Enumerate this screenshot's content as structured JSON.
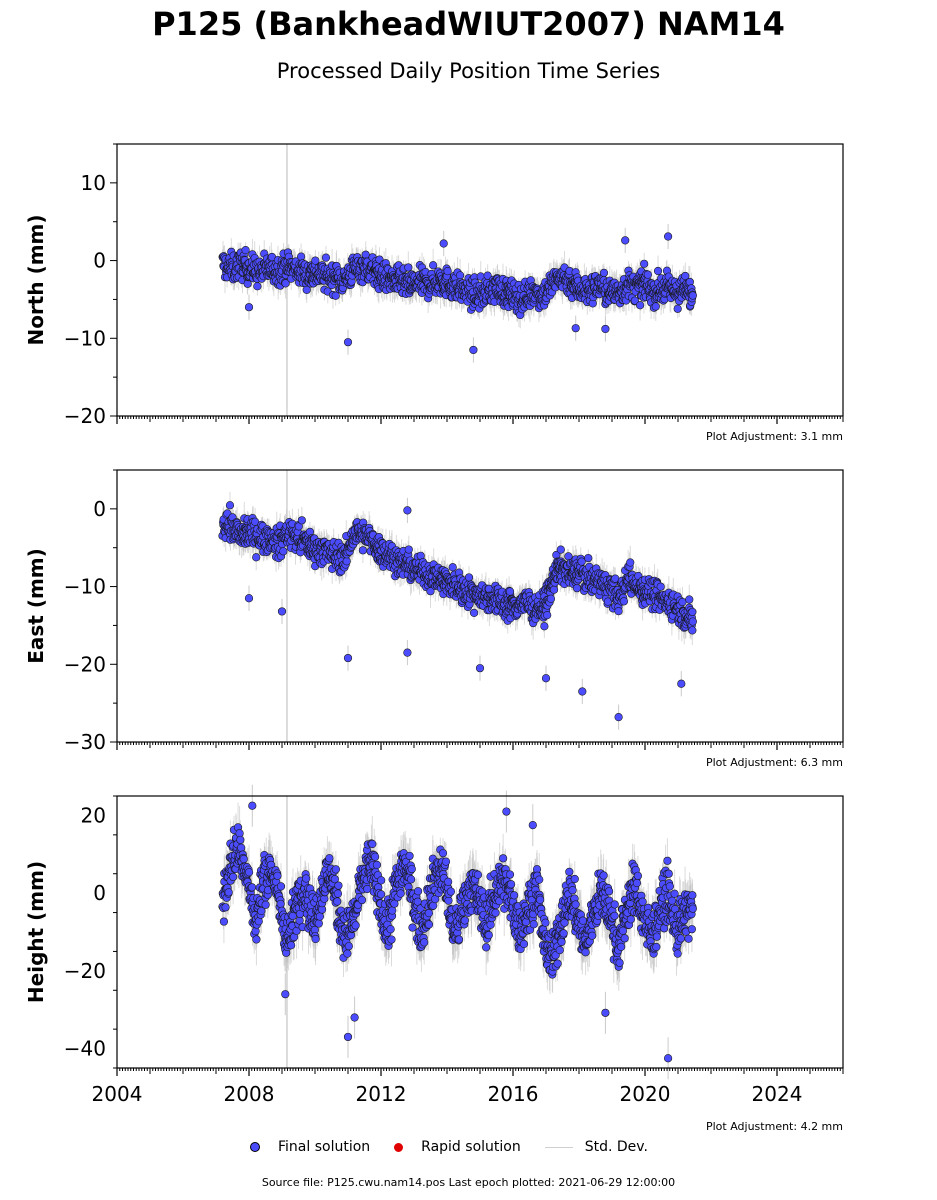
{
  "header": {
    "title": "P125 (BankheadWIUT2007) NAM14",
    "subtitle": "Processed Daily Position Time Series"
  },
  "legend": {
    "final": "Final solution",
    "rapid": "Rapid solution",
    "std": "Std. Dev."
  },
  "footer": {
    "source": "Source file: P125.cwu.nam14.pos  Last epoch plotted: 2021-06-29 12:00:00"
  },
  "colors": {
    "final_fill": "#4c4cff",
    "rapid_fill": "#e00000",
    "std_dev": "#bdbdbd",
    "marker_edge": "#1a1a1a",
    "event_line": "#d0d0d0"
  },
  "chart_data": [
    {
      "type": "scatter",
      "ylabel": "North (mm)",
      "xlabel": "",
      "xlim": [
        2004,
        2026
      ],
      "ylim": [
        -20,
        15
      ],
      "yticks": [
        -20,
        -10,
        0,
        10
      ],
      "xticks": [
        2004,
        2008,
        2012,
        2016,
        2020,
        2024
      ],
      "event_lines": [
        2009.15
      ],
      "adjustment": "Plot Adjustment: 3.1 mm",
      "series": [
        {
          "name": "Final solution",
          "x": [
            2007.2,
            2007.5,
            2007.8,
            2008.0,
            2008.3,
            2008.6,
            2008.9,
            2009.2,
            2009.5,
            2009.8,
            2010.0,
            2010.3,
            2010.6,
            2010.9,
            2011.2,
            2011.5,
            2011.8,
            2012.0,
            2012.3,
            2012.6,
            2012.9,
            2013.2,
            2013.5,
            2013.8,
            2014.0,
            2014.3,
            2014.6,
            2014.9,
            2015.2,
            2015.5,
            2015.8,
            2016.0,
            2016.3,
            2016.6,
            2016.9,
            2017.2,
            2017.5,
            2017.8,
            2018.0,
            2018.3,
            2018.6,
            2018.9,
            2019.2,
            2019.5,
            2019.8,
            2020.0,
            2020.3,
            2020.6,
            2020.9,
            2021.2,
            2021.45
          ],
          "y": [
            -0.5,
            -1.0,
            -0.5,
            -1.0,
            -1.5,
            -1.0,
            -1.2,
            -0.8,
            -1.3,
            -1.8,
            -1.5,
            -2.0,
            -2.2,
            -2.5,
            -1.0,
            -0.8,
            -1.5,
            -2.0,
            -2.5,
            -2.8,
            -3.2,
            -2.8,
            -3.0,
            -2.5,
            -2.8,
            -3.5,
            -4.0,
            -4.5,
            -4.0,
            -3.5,
            -4.2,
            -4.5,
            -5.0,
            -4.0,
            -4.5,
            -3.0,
            -2.0,
            -3.0,
            -3.5,
            -4.0,
            -3.0,
            -4.2,
            -4.0,
            -3.2,
            -3.5,
            -3.0,
            -4.0,
            -3.5,
            -4.0,
            -3.8,
            -4.5
          ],
          "outliers_x": [
            2011.0,
            2014.8,
            2008.0,
            2017.9,
            2020.7,
            2019.4,
            2018.8,
            2013.9
          ],
          "outliers_y": [
            -10.5,
            -11.5,
            -6.0,
            -8.7,
            3.1,
            2.6,
            -8.8,
            2.2
          ]
        }
      ]
    },
    {
      "type": "scatter",
      "ylabel": "East (mm)",
      "xlabel": "",
      "xlim": [
        2004,
        2026
      ],
      "ylim": [
        -30,
        5
      ],
      "yticks": [
        -30,
        -20,
        -10,
        0
      ],
      "xticks": [
        2004,
        2008,
        2012,
        2016,
        2020,
        2024
      ],
      "event_lines": [
        2009.15
      ],
      "adjustment": "Plot Adjustment: 6.3 mm",
      "series": [
        {
          "name": "Final solution",
          "x": [
            2007.2,
            2007.5,
            2007.8,
            2008.0,
            2008.3,
            2008.6,
            2008.9,
            2009.2,
            2009.5,
            2009.8,
            2010.0,
            2010.3,
            2010.6,
            2010.9,
            2011.2,
            2011.5,
            2011.8,
            2012.0,
            2012.3,
            2012.6,
            2012.9,
            2013.2,
            2013.5,
            2013.8,
            2014.0,
            2014.3,
            2014.6,
            2014.9,
            2015.2,
            2015.5,
            2015.8,
            2016.0,
            2016.3,
            2016.6,
            2016.9,
            2017.1,
            2017.3,
            2017.5,
            2017.8,
            2018.0,
            2018.3,
            2018.6,
            2018.9,
            2019.2,
            2019.5,
            2019.8,
            2020.0,
            2020.3,
            2020.6,
            2020.9,
            2021.2,
            2021.45
          ],
          "y": [
            -1.5,
            -2.5,
            -3.5,
            -3.0,
            -3.5,
            -4.0,
            -4.5,
            -3.0,
            -3.8,
            -4.5,
            -5.0,
            -5.5,
            -6.0,
            -6.5,
            -3.0,
            -3.5,
            -4.5,
            -5.5,
            -6.0,
            -7.0,
            -7.5,
            -8.0,
            -8.5,
            -9.0,
            -9.5,
            -10.0,
            -10.5,
            -11.0,
            -11.2,
            -11.8,
            -12.2,
            -12.5,
            -12.0,
            -12.5,
            -12.8,
            -11.0,
            -8.0,
            -7.5,
            -8.5,
            -8.0,
            -9.0,
            -9.5,
            -10.0,
            -11.5,
            -9.0,
            -10.0,
            -10.5,
            -11.0,
            -11.8,
            -12.5,
            -13.5,
            -14.5
          ],
          "outliers_x": [
            2011.0,
            2012.8,
            2015.0,
            2018.1,
            2019.2,
            2017.0,
            2021.1,
            2008.0,
            2009.0,
            2012.8
          ],
          "outliers_y": [
            -19.2,
            -18.5,
            -20.5,
            -23.5,
            -26.8,
            -21.8,
            -22.5,
            -11.5,
            -13.2,
            -0.2
          ]
        }
      ]
    },
    {
      "type": "scatter",
      "ylabel": "Height (mm)",
      "xlabel": "",
      "xlim": [
        2004,
        2026
      ],
      "ylim": [
        -45,
        25
      ],
      "yticks": [
        -40,
        -20,
        0,
        20
      ],
      "xticks": [
        2004,
        2008,
        2012,
        2016,
        2020,
        2024
      ],
      "xticklabels": [
        "2004",
        "2008",
        "2012",
        "2016",
        "2020",
        "2024"
      ],
      "event_lines": [
        2009.15
      ],
      "adjustment": "Plot Adjustment: 4.2 mm",
      "series": [
        {
          "name": "Final solution",
          "x": [
            2007.2,
            2007.45,
            2007.7,
            2007.95,
            2008.2,
            2008.45,
            2008.7,
            2008.95,
            2009.2,
            2009.45,
            2009.7,
            2009.95,
            2010.2,
            2010.45,
            2010.7,
            2010.95,
            2011.2,
            2011.45,
            2011.7,
            2011.95,
            2012.2,
            2012.45,
            2012.7,
            2012.95,
            2013.2,
            2013.45,
            2013.7,
            2013.95,
            2014.2,
            2014.45,
            2014.7,
            2014.95,
            2015.2,
            2015.45,
            2015.7,
            2015.95,
            2016.2,
            2016.45,
            2016.7,
            2016.95,
            2017.2,
            2017.45,
            2017.7,
            2017.95,
            2018.2,
            2018.45,
            2018.7,
            2018.95,
            2019.2,
            2019.45,
            2019.7,
            2019.95,
            2020.2,
            2020.45,
            2020.7,
            2020.95,
            2021.2,
            2021.45
          ],
          "y": [
            -2,
            8,
            12,
            4,
            -8,
            4,
            6,
            -4,
            -12,
            -2,
            2,
            -8,
            0,
            6,
            -4,
            -12,
            -6,
            4,
            8,
            -2,
            -10,
            2,
            8,
            0,
            -10,
            -2,
            6,
            4,
            -12,
            -4,
            2,
            -2,
            -8,
            0,
            4,
            -2,
            -10,
            -4,
            2,
            -12,
            -18,
            -8,
            0,
            -6,
            -14,
            -4,
            0,
            -6,
            -14,
            -4,
            2,
            -6,
            -12,
            -4,
            0,
            -10,
            -6,
            -4
          ],
          "outliers_x": [
            2011.0,
            2011.2,
            2020.7,
            2018.8,
            2009.1,
            2015.8,
            2016.6,
            2008.1
          ],
          "outliers_y": [
            -37,
            -32,
            -42.5,
            -30.8,
            -26,
            21,
            17.5,
            22.5
          ]
        }
      ]
    }
  ]
}
